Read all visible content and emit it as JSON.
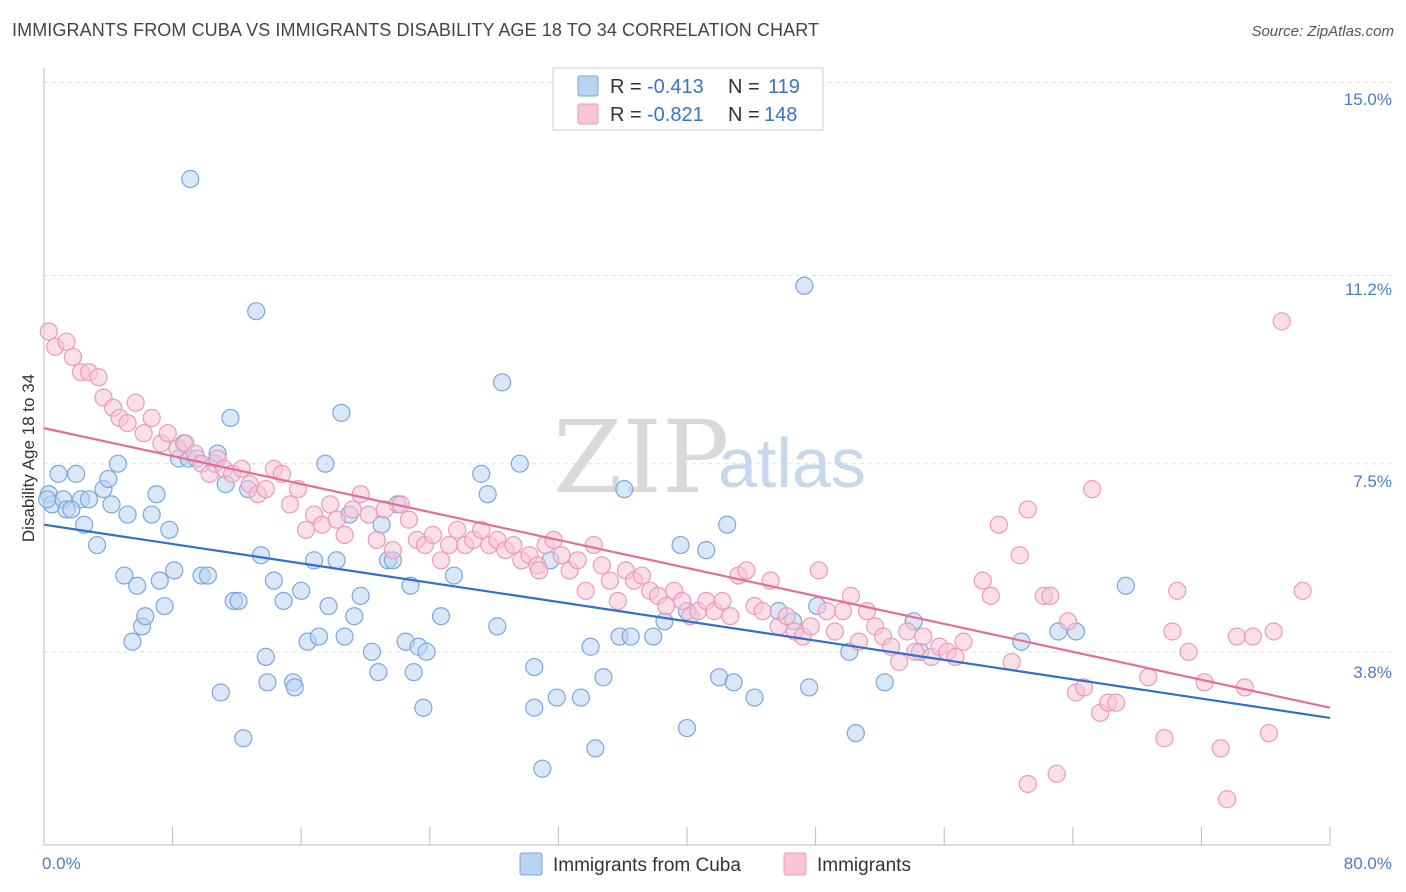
{
  "title": "IMMIGRANTS FROM CUBA VS IMMIGRANTS DISABILITY AGE 18 TO 34 CORRELATION CHART",
  "source": "Source: ZipAtlas.com",
  "watermark": {
    "part1": "ZIP",
    "part2": "atlas"
  },
  "legend": {
    "rows": [
      {
        "r_label": "R =",
        "r_value": "-0.413",
        "n_label": "N =",
        "n_value": "119"
      },
      {
        "r_label": "R =",
        "r_value": "-0.821",
        "n_label": "N =",
        "n_value": "148"
      }
    ]
  },
  "colors": {
    "cuba_fill": "#b9d3f3",
    "cuba_stroke": "#7aa7de",
    "cuba_line": "#2f6fce",
    "imm_fill": "#f8c5d5",
    "imm_stroke": "#ec9ab5",
    "imm_line": "#e56d96",
    "grid": "#dddddd",
    "tick_text": "#4a7cc9"
  },
  "chart_data": {
    "type": "scatter",
    "title": "IMMIGRANTS FROM CUBA VS IMMIGRANTS DISABILITY AGE 18 TO 34 CORRELATION CHART",
    "xlabel": "",
    "ylabel": "Disability Age 18 to 34",
    "xlim": [
      0,
      80
    ],
    "ylim": [
      0,
      15.5
    ],
    "x_tick_labels": [
      "0.0%",
      "80.0%"
    ],
    "y_ticks": [
      3.8,
      7.5,
      11.2,
      15.0
    ],
    "y_tick_labels": [
      "3.8%",
      "7.5%",
      "11.2%",
      "15.0%"
    ],
    "grid": true,
    "legend_position": "top-center",
    "series": [
      {
        "name": "Immigrants from Cuba",
        "color": "#7aa7de",
        "trend": {
          "x": [
            0,
            80
          ],
          "y": [
            6.3,
            2.5
          ]
        },
        "points": [
          [
            0.3,
            6.9
          ],
          [
            0.5,
            6.7
          ],
          [
            0.9,
            7.3
          ],
          [
            1.2,
            6.8
          ],
          [
            1.4,
            6.6
          ],
          [
            2.0,
            7.3
          ],
          [
            2.3,
            6.8
          ],
          [
            2.5,
            6.3
          ],
          [
            2.8,
            6.8
          ],
          [
            3.3,
            5.9
          ],
          [
            3.7,
            7.0
          ],
          [
            4.0,
            7.2
          ],
          [
            4.2,
            6.7
          ],
          [
            4.6,
            7.5
          ],
          [
            5.0,
            5.3
          ],
          [
            5.2,
            6.5
          ],
          [
            5.5,
            4.0
          ],
          [
            5.8,
            5.1
          ],
          [
            6.1,
            4.3
          ],
          [
            6.3,
            4.5
          ],
          [
            6.7,
            6.5
          ],
          [
            7.0,
            6.9
          ],
          [
            7.2,
            5.2
          ],
          [
            7.5,
            4.7
          ],
          [
            7.8,
            6.2
          ],
          [
            8.1,
            5.4
          ],
          [
            8.4,
            7.6
          ],
          [
            8.7,
            7.9
          ],
          [
            9.0,
            7.6
          ],
          [
            9.1,
            13.1
          ],
          [
            9.5,
            7.6
          ],
          [
            9.8,
            5.3
          ],
          [
            10.2,
            5.3
          ],
          [
            10.6,
            7.5
          ],
          [
            10.8,
            7.7
          ],
          [
            11.0,
            3.0
          ],
          [
            11.3,
            7.1
          ],
          [
            11.6,
            8.4
          ],
          [
            11.8,
            4.8
          ],
          [
            12.1,
            4.8
          ],
          [
            12.4,
            2.1
          ],
          [
            12.7,
            7.0
          ],
          [
            13.2,
            10.5
          ],
          [
            13.5,
            5.7
          ],
          [
            13.8,
            3.7
          ],
          [
            13.9,
            3.2
          ],
          [
            14.3,
            5.2
          ],
          [
            14.9,
            4.8
          ],
          [
            15.5,
            3.2
          ],
          [
            15.6,
            3.1
          ],
          [
            16.0,
            5.0
          ],
          [
            16.4,
            4.0
          ],
          [
            16.8,
            5.6
          ],
          [
            17.1,
            4.1
          ],
          [
            17.5,
            7.5
          ],
          [
            17.7,
            4.7
          ],
          [
            18.2,
            5.6
          ],
          [
            18.5,
            8.5
          ],
          [
            18.7,
            4.1
          ],
          [
            19.0,
            6.5
          ],
          [
            19.3,
            4.5
          ],
          [
            19.7,
            4.9
          ],
          [
            20.4,
            3.8
          ],
          [
            20.8,
            3.4
          ],
          [
            21.0,
            6.3
          ],
          [
            21.4,
            5.6
          ],
          [
            21.7,
            5.6
          ],
          [
            22.0,
            6.7
          ],
          [
            22.5,
            4.0
          ],
          [
            22.8,
            5.1
          ],
          [
            23.0,
            3.4
          ],
          [
            23.3,
            3.9
          ],
          [
            23.6,
            2.7
          ],
          [
            23.8,
            3.8
          ],
          [
            24.7,
            4.5
          ],
          [
            25.5,
            5.3
          ],
          [
            27.2,
            7.3
          ],
          [
            27.6,
            6.9
          ],
          [
            28.2,
            4.3
          ],
          [
            28.5,
            9.1
          ],
          [
            29.6,
            7.5
          ],
          [
            30.5,
            2.7
          ],
          [
            30.5,
            3.5
          ],
          [
            31.0,
            1.5
          ],
          [
            31.5,
            5.6
          ],
          [
            31.9,
            2.9
          ],
          [
            33.4,
            2.9
          ],
          [
            34.0,
            3.9
          ],
          [
            34.3,
            1.9
          ],
          [
            34.8,
            3.3
          ],
          [
            35.8,
            4.1
          ],
          [
            36.1,
            7.0
          ],
          [
            36.5,
            4.1
          ],
          [
            37.9,
            4.1
          ],
          [
            38.6,
            4.4
          ],
          [
            39.6,
            5.9
          ],
          [
            40.0,
            4.6
          ],
          [
            40.0,
            2.3
          ],
          [
            41.2,
            5.8
          ],
          [
            42.0,
            3.3
          ],
          [
            42.5,
            6.3
          ],
          [
            42.9,
            3.2
          ],
          [
            44.2,
            2.9
          ],
          [
            45.7,
            4.6
          ],
          [
            46.6,
            4.4
          ],
          [
            47.3,
            11.0
          ],
          [
            47.6,
            3.1
          ],
          [
            48.1,
            4.7
          ],
          [
            50.1,
            3.8
          ],
          [
            50.5,
            2.2
          ],
          [
            52.3,
            3.2
          ],
          [
            54.1,
            4.4
          ],
          [
            54.5,
            3.8
          ],
          [
            60.8,
            4.0
          ],
          [
            63.1,
            4.2
          ],
          [
            64.2,
            4.2
          ],
          [
            67.3,
            5.1
          ],
          [
            0.2,
            6.8
          ],
          [
            1.7,
            6.6
          ]
        ]
      },
      {
        "name": "Immigrants",
        "color": "#ec9ab5",
        "trend": {
          "x": [
            0,
            80
          ],
          "y": [
            8.2,
            2.7
          ]
        },
        "points": [
          [
            0.3,
            10.1
          ],
          [
            0.7,
            9.8
          ],
          [
            1.4,
            9.9
          ],
          [
            1.8,
            9.6
          ],
          [
            2.3,
            9.3
          ],
          [
            2.8,
            9.3
          ],
          [
            3.4,
            9.2
          ],
          [
            3.7,
            8.8
          ],
          [
            4.3,
            8.6
          ],
          [
            4.7,
            8.4
          ],
          [
            5.2,
            8.3
          ],
          [
            5.7,
            8.7
          ],
          [
            6.2,
            8.1
          ],
          [
            6.7,
            8.4
          ],
          [
            7.3,
            7.9
          ],
          [
            7.7,
            8.1
          ],
          [
            8.3,
            7.8
          ],
          [
            8.8,
            7.9
          ],
          [
            9.4,
            7.7
          ],
          [
            9.8,
            7.5
          ],
          [
            10.3,
            7.3
          ],
          [
            10.8,
            7.6
          ],
          [
            11.2,
            7.4
          ],
          [
            11.7,
            7.3
          ],
          [
            12.3,
            7.4
          ],
          [
            12.8,
            7.1
          ],
          [
            13.3,
            6.9
          ],
          [
            13.8,
            7.0
          ],
          [
            14.3,
            7.4
          ],
          [
            14.8,
            7.3
          ],
          [
            15.3,
            6.7
          ],
          [
            15.8,
            7.0
          ],
          [
            16.3,
            6.2
          ],
          [
            16.8,
            6.5
          ],
          [
            17.3,
            6.3
          ],
          [
            17.8,
            6.7
          ],
          [
            18.2,
            6.4
          ],
          [
            18.7,
            6.1
          ],
          [
            19.2,
            6.6
          ],
          [
            19.7,
            6.9
          ],
          [
            20.2,
            6.5
          ],
          [
            20.7,
            6.0
          ],
          [
            21.2,
            6.6
          ],
          [
            21.7,
            5.8
          ],
          [
            22.2,
            6.7
          ],
          [
            22.7,
            6.4
          ],
          [
            23.2,
            6.0
          ],
          [
            23.7,
            5.9
          ],
          [
            24.2,
            6.1
          ],
          [
            24.7,
            5.6
          ],
          [
            25.2,
            5.9
          ],
          [
            25.7,
            6.2
          ],
          [
            26.2,
            5.9
          ],
          [
            26.7,
            6.0
          ],
          [
            27.2,
            6.2
          ],
          [
            27.7,
            5.9
          ],
          [
            28.2,
            6.0
          ],
          [
            28.7,
            5.8
          ],
          [
            29.2,
            5.9
          ],
          [
            29.7,
            5.6
          ],
          [
            30.2,
            5.7
          ],
          [
            30.7,
            5.5
          ],
          [
            31.2,
            5.9
          ],
          [
            31.7,
            6.0
          ],
          [
            32.2,
            5.7
          ],
          [
            32.7,
            5.4
          ],
          [
            33.2,
            5.6
          ],
          [
            33.7,
            5.0
          ],
          [
            34.2,
            5.9
          ],
          [
            34.7,
            5.5
          ],
          [
            35.2,
            5.2
          ],
          [
            35.7,
            4.8
          ],
          [
            36.2,
            5.4
          ],
          [
            36.7,
            5.2
          ],
          [
            37.2,
            5.3
          ],
          [
            37.7,
            5.0
          ],
          [
            38.2,
            4.9
          ],
          [
            38.7,
            4.7
          ],
          [
            39.2,
            5.0
          ],
          [
            39.7,
            4.8
          ],
          [
            40.2,
            4.5
          ],
          [
            40.7,
            4.6
          ],
          [
            41.2,
            4.8
          ],
          [
            41.7,
            4.6
          ],
          [
            42.2,
            4.8
          ],
          [
            42.7,
            4.5
          ],
          [
            43.2,
            5.3
          ],
          [
            43.7,
            5.4
          ],
          [
            44.2,
            4.7
          ],
          [
            44.7,
            4.6
          ],
          [
            45.2,
            5.2
          ],
          [
            45.7,
            4.3
          ],
          [
            46.2,
            4.5
          ],
          [
            46.7,
            4.2
          ],
          [
            47.2,
            4.1
          ],
          [
            47.7,
            4.3
          ],
          [
            48.2,
            5.4
          ],
          [
            48.7,
            4.6
          ],
          [
            49.2,
            4.2
          ],
          [
            49.7,
            4.6
          ],
          [
            50.2,
            4.9
          ],
          [
            50.7,
            4.0
          ],
          [
            51.2,
            4.6
          ],
          [
            51.7,
            4.3
          ],
          [
            52.2,
            4.1
          ],
          [
            52.7,
            3.9
          ],
          [
            53.2,
            3.6
          ],
          [
            53.7,
            4.2
          ],
          [
            54.2,
            3.8
          ],
          [
            54.7,
            4.1
          ],
          [
            55.2,
            3.7
          ],
          [
            55.7,
            3.9
          ],
          [
            56.2,
            3.8
          ],
          [
            56.7,
            3.7
          ],
          [
            57.2,
            4.0
          ],
          [
            58.4,
            5.2
          ],
          [
            58.9,
            4.9
          ],
          [
            59.4,
            6.3
          ],
          [
            60.2,
            3.6
          ],
          [
            60.7,
            5.7
          ],
          [
            61.2,
            6.6
          ],
          [
            61.2,
            1.2
          ],
          [
            62.2,
            4.9
          ],
          [
            62.6,
            4.9
          ],
          [
            63.0,
            1.4
          ],
          [
            63.7,
            4.4
          ],
          [
            64.2,
            3.0
          ],
          [
            64.7,
            3.1
          ],
          [
            65.2,
            7.0
          ],
          [
            65.7,
            2.6
          ],
          [
            66.2,
            2.8
          ],
          [
            66.7,
            2.8
          ],
          [
            68.7,
            3.3
          ],
          [
            69.7,
            2.1
          ],
          [
            70.2,
            4.2
          ],
          [
            70.5,
            5.0
          ],
          [
            71.2,
            3.8
          ],
          [
            72.2,
            3.2
          ],
          [
            73.2,
            1.9
          ],
          [
            73.6,
            0.9
          ],
          [
            74.2,
            4.1
          ],
          [
            74.7,
            3.1
          ],
          [
            75.2,
            4.1
          ],
          [
            76.2,
            2.2
          ],
          [
            76.5,
            4.2
          ],
          [
            77.0,
            10.3
          ],
          [
            78.3,
            5.0
          ],
          [
            30.8,
            5.4
          ]
        ]
      }
    ]
  },
  "bottom_legend": [
    {
      "label": "Immigrants from Cuba"
    },
    {
      "label": "Immigrants"
    }
  ]
}
